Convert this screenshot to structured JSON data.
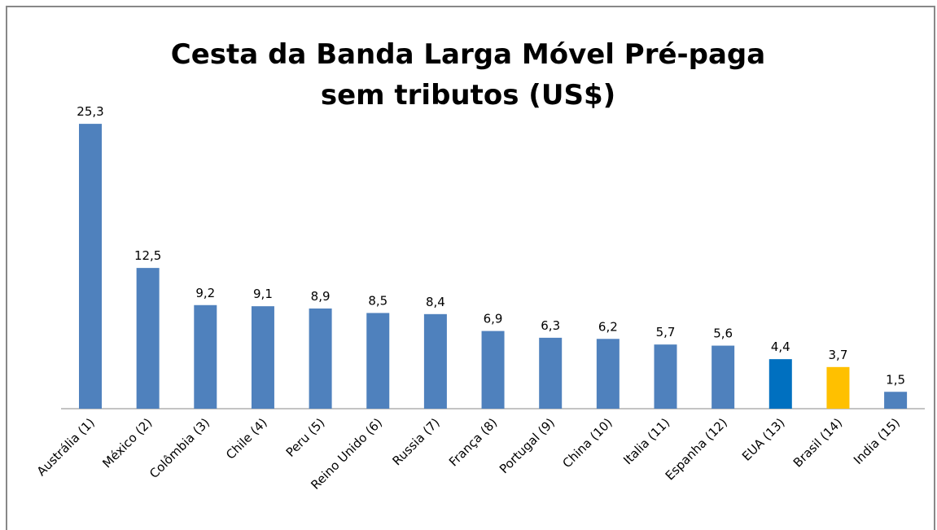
{
  "chart_data": {
    "type": "bar",
    "title": [
      "Cesta da Banda Larga Móvel Pré-paga",
      "sem tributos (US$)"
    ],
    "categories": [
      "Austrália (1)",
      "México (2)",
      "Colômbia (3)",
      "Chile (4)",
      "Peru (5)",
      "Reino Unido (6)",
      "Russia (7)",
      "França (8)",
      "Portugal (9)",
      "China (10)",
      "Italia (11)",
      "Espanha (12)",
      "EUA (13)",
      "Brasil (14)",
      "India (15)"
    ],
    "values": [
      25.3,
      12.5,
      9.2,
      9.1,
      8.9,
      8.5,
      8.4,
      6.9,
      6.3,
      6.2,
      5.7,
      5.6,
      4.4,
      3.7,
      1.5
    ],
    "value_labels": [
      "25,3",
      "12,5",
      "9,2",
      "9,1",
      "8,9",
      "8,5",
      "8,4",
      "6,9",
      "6,3",
      "6,2",
      "5,7",
      "5,6",
      "4,4",
      "3,7",
      "1,5"
    ],
    "colors": [
      "#4f81bd",
      "#4f81bd",
      "#4f81bd",
      "#4f81bd",
      "#4f81bd",
      "#4f81bd",
      "#4f81bd",
      "#4f81bd",
      "#4f81bd",
      "#4f81bd",
      "#4f81bd",
      "#4f81bd",
      "#0070c0",
      "#ffc000",
      "#4f81bd"
    ]
  }
}
